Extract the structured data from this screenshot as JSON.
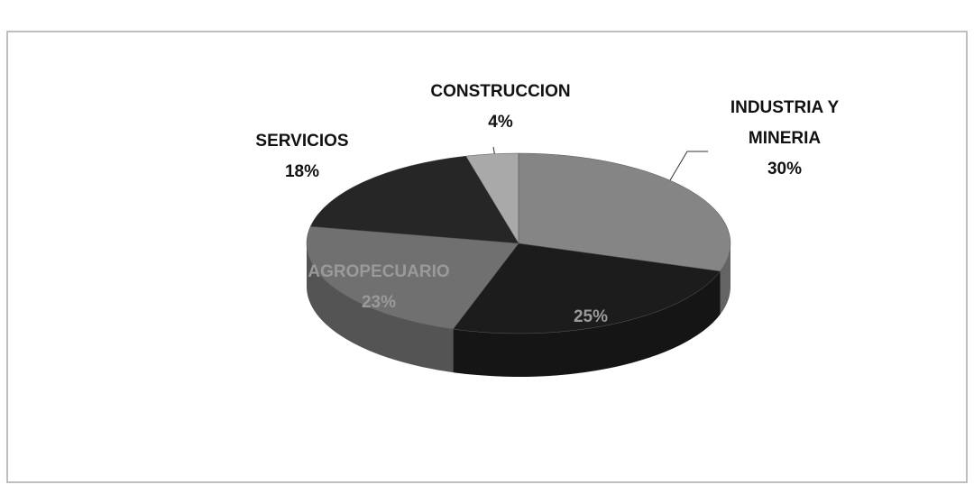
{
  "chart_data": {
    "type": "pie3d",
    "categories": [
      "CONSTRUCCION",
      "INDUSTRIA Y MINERIA",
      null,
      "AGROPECUARIO",
      "SERVICIOS"
    ],
    "values": [
      4,
      30,
      25,
      23,
      18
    ],
    "value_labels": [
      "4%",
      "30%",
      "25%",
      "23%",
      "18%"
    ],
    "colors": [
      "#a9a9a9",
      "#858585",
      "#1c1c1c",
      "#707070",
      "#262626"
    ]
  }
}
